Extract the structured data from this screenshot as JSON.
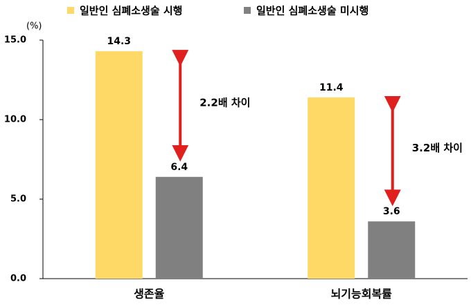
{
  "chart_data": {
    "type": "bar",
    "y_unit": "(%)",
    "categories": [
      "생존율",
      "뇌기능회복률"
    ],
    "series": [
      {
        "name": "일반인 심폐소생술 시행",
        "color": "#FFD966",
        "values": [
          14.3,
          11.4
        ]
      },
      {
        "name": "일반인 심폐소생술 미시행",
        "color": "#808080",
        "values": [
          6.4,
          3.6
        ]
      }
    ],
    "ylim": [
      0,
      15
    ],
    "yticks": [
      {
        "value": 0,
        "label": "0.0"
      },
      {
        "value": 5,
        "label": "5.0"
      },
      {
        "value": 10,
        "label": "10.0"
      },
      {
        "value": 15,
        "label": "15.0"
      }
    ],
    "annotations": [
      "2.2배 차이",
      "3.2배 차이"
    ],
    "arrow_color": "#E0201F",
    "grid": false,
    "legend": "top"
  }
}
